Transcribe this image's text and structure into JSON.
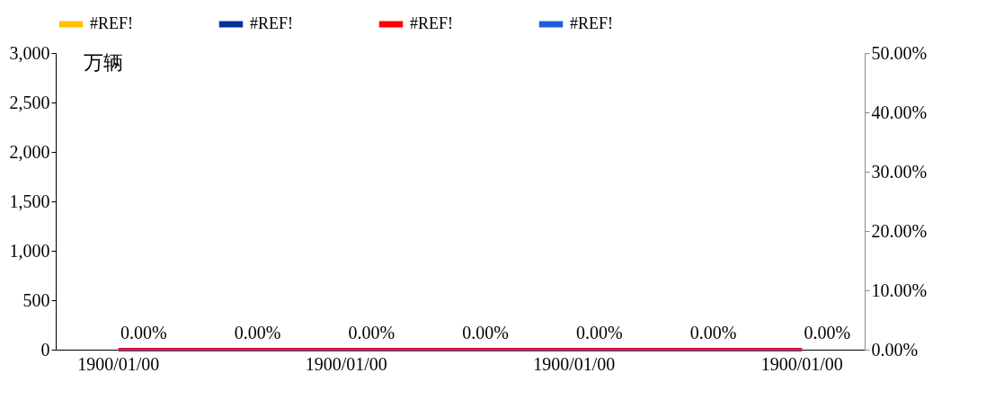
{
  "chart_data": {
    "type": "bar",
    "ylabel": "万辆",
    "legend": "top",
    "grid": false,
    "categories": [
      "1900/01/00",
      null,
      "1900/01/00",
      null,
      "1900/01/00",
      null,
      "1900/01/00"
    ],
    "series": [
      {
        "name": "#REF!",
        "color": "#ffc000",
        "values": [
          0,
          0,
          0,
          0,
          0,
          0,
          0
        ]
      },
      {
        "name": "#REF!",
        "color": "#003399",
        "values": [
          0,
          0,
          0,
          0,
          0,
          0,
          0
        ]
      },
      {
        "name": "#REF!",
        "type": "line",
        "color": "#ff0000",
        "values": [
          0,
          0,
          0,
          0,
          0,
          0,
          0
        ]
      },
      {
        "name": "#REF!",
        "type": "line",
        "axis": "y2",
        "color": "#1f5fd6",
        "values": [
          0,
          0,
          0,
          0,
          0,
          0,
          0
        ],
        "value_labels": [
          "0.00%",
          "0.00%",
          "0.00%",
          "0.00%",
          "0.00%",
          "0.00%",
          "0.00%"
        ]
      }
    ],
    "ylim": [
      0,
      3000
    ],
    "yticks": [
      0,
      500,
      {
        "value": 1000,
        "label": "1,000"
      },
      {
        "value": 1500,
        "label": "1,500"
      },
      {
        "value": 2000,
        "label": "2,000"
      },
      {
        "value": 2500,
        "label": "2,500"
      },
      {
        "value": 3000,
        "label": "3,000"
      }
    ],
    "y2lim": [
      0,
      50
    ],
    "y2ticks": [
      {
        "value": 0,
        "label": "0.00%"
      },
      {
        "value": 10,
        "label": "10.00%"
      },
      {
        "value": 20,
        "label": "20.00%"
      },
      {
        "value": 30,
        "label": "30.00%"
      },
      {
        "value": 40,
        "label": "40.00%"
      },
      {
        "value": 50,
        "label": "50.00%"
      }
    ]
  }
}
